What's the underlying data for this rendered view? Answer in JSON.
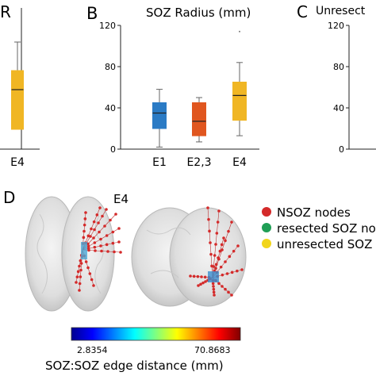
{
  "chart_data": [
    {
      "type": "box",
      "panel": "A",
      "panel_label": "R",
      "categories": [
        "E4"
      ],
      "boxes": [
        {
          "category": "E4",
          "whisker_low": 25,
          "q1": 25,
          "median": 75,
          "q3": 99,
          "whisker_high": 135,
          "color": "#f0b624"
        }
      ]
    },
    {
      "type": "box",
      "panel": "B",
      "panel_label": "B",
      "title": "SOZ Radius (mm)",
      "categories": [
        "E1",
        "E2,3",
        "E4"
      ],
      "ylim": [
        0,
        120
      ],
      "yticks": [
        0,
        40,
        80,
        120
      ],
      "boxes": [
        {
          "category": "E1",
          "whisker_low": 2,
          "q1": 20,
          "median": 35,
          "q3": 45,
          "whisker_high": 58,
          "color": "#2b7bc5"
        },
        {
          "category": "E2,3",
          "whisker_low": 7,
          "q1": 13,
          "median": 27,
          "q3": 45,
          "whisker_high": 50,
          "color": "#e0561f"
        },
        {
          "category": "E4",
          "whisker_low": 13,
          "q1": 28,
          "median": 52,
          "q3": 65,
          "whisker_high": 84,
          "outliers": [
            114
          ],
          "color": "#f0b624"
        }
      ]
    },
    {
      "type": "box",
      "panel": "C",
      "panel_label": "C",
      "title": "Unresect",
      "ylim": [
        0,
        120
      ],
      "yticks": [
        0,
        40,
        80,
        120
      ]
    }
  ],
  "panel_d": {
    "panel_label": "D",
    "subtitle": "E4",
    "legend": [
      {
        "label": "NSOZ nodes",
        "color": "#d42a2a"
      },
      {
        "label": "resected SOZ no",
        "color": "#1f9e55"
      },
      {
        "label": "unresected SOZ",
        "color": "#f1d51b"
      }
    ],
    "colorbar": {
      "min_label": "2.8354",
      "max_label": "70.8683",
      "title": "SOZ:SOZ edge distance (mm)",
      "colormap": "jet"
    }
  }
}
